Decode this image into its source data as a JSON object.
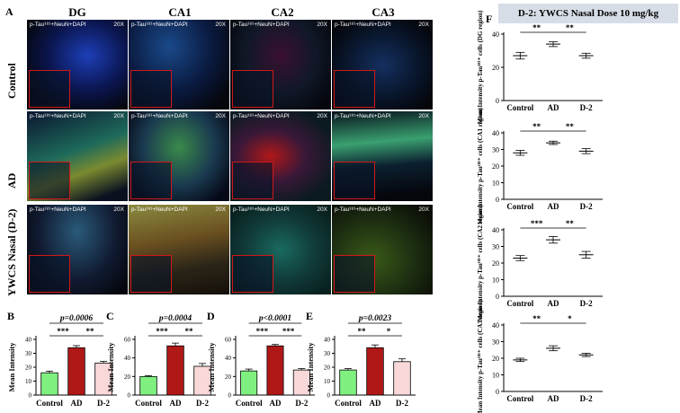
{
  "headers": {
    "figure_letter_A": "A",
    "figure_letter_F": "F",
    "columns": [
      "DG",
      "CA1",
      "CA2",
      "CA3"
    ],
    "rows": [
      "Control",
      "AD",
      "YWCS Nasal (D-2)"
    ],
    "tile_label": "p-Tau¹⁸¹+NeuN+DAPI",
    "zoom": "20X"
  },
  "panel_F_title": "D-2: YWCS Nasal Dose 10 mg/kg",
  "colors": {
    "control": "#7ff07f",
    "ad": "#b01818",
    "d2": "#f8d8d8"
  },
  "chart_data": [
    {
      "type": "bar",
      "panel": "B",
      "categories": [
        "Control",
        "AD",
        "D-2"
      ],
      "values": [
        16,
        34,
        23
      ],
      "errors": [
        1.2,
        1.5,
        1.2
      ],
      "ylabel": "Mean Intensity",
      "ylim": [
        0,
        40
      ],
      "yticks": [
        0,
        10,
        20,
        30,
        40
      ],
      "pvalue": "p=0.0006",
      "sig": [
        {
          "from": 0,
          "to": 1,
          "label": "***"
        },
        {
          "from": 1,
          "to": 2,
          "label": "**"
        }
      ]
    },
    {
      "type": "bar",
      "panel": "C",
      "categories": [
        "Control",
        "AD",
        "D-2"
      ],
      "values": [
        20,
        53,
        31
      ],
      "errors": [
        1,
        3,
        3
      ],
      "ylabel": "Mean Intensity",
      "ylim": [
        0,
        60
      ],
      "yticks": [
        0,
        20,
        40,
        60
      ],
      "pvalue": "p=0.0004",
      "sig": [
        {
          "from": 0,
          "to": 1,
          "label": "***"
        },
        {
          "from": 1,
          "to": 2,
          "label": "**"
        }
      ]
    },
    {
      "type": "bar",
      "panel": "D",
      "categories": [
        "Control",
        "AD",
        "D-2"
      ],
      "values": [
        26,
        53,
        27
      ],
      "errors": [
        2,
        1.5,
        1.5
      ],
      "ylabel": "Mean Intensity",
      "ylim": [
        0,
        60
      ],
      "yticks": [
        0,
        20,
        40,
        60
      ],
      "pvalue": "p<0.0001",
      "sig": [
        {
          "from": 0,
          "to": 1,
          "label": "***"
        },
        {
          "from": 1,
          "to": 2,
          "label": "***"
        }
      ]
    },
    {
      "type": "bar",
      "panel": "E",
      "categories": [
        "Control",
        "AD",
        "D-2"
      ],
      "values": [
        18,
        34,
        24
      ],
      "errors": [
        1,
        2,
        2
      ],
      "ylabel": "Mean Intensity",
      "ylim": [
        0,
        40
      ],
      "yticks": [
        0,
        10,
        20,
        30,
        40
      ],
      "pvalue": "p=0.0023",
      "sig": [
        {
          "from": 0,
          "to": 1,
          "label": "**"
        },
        {
          "from": 1,
          "to": 2,
          "label": "*"
        }
      ]
    },
    {
      "type": "scatter",
      "panel": "F1",
      "categories": [
        "Control",
        "AD",
        "D-2"
      ],
      "values": [
        27,
        34,
        27
      ],
      "errors": [
        2,
        1.5,
        1.5
      ],
      "ylabel": "Mean Intensity p-Tau¹⁸¹⁺ cells (DG region)",
      "ylim": [
        0,
        40
      ],
      "yticks": [
        0,
        20,
        40
      ],
      "sig": [
        {
          "from": 0,
          "to": 1,
          "label": "**"
        },
        {
          "from": 1,
          "to": 2,
          "label": "**"
        }
      ]
    },
    {
      "type": "scatter",
      "panel": "F2",
      "categories": [
        "Control",
        "AD",
        "D-2"
      ],
      "values": [
        28,
        34,
        29
      ],
      "errors": [
        1.5,
        1,
        1.5
      ],
      "ylabel": "Mean Intensity p-Tau¹⁸¹⁺ cells (CA1 region)",
      "ylim": [
        0,
        40
      ],
      "yticks": [
        0,
        10,
        20,
        30,
        40
      ],
      "sig": [
        {
          "from": 0,
          "to": 1,
          "label": "**"
        },
        {
          "from": 1,
          "to": 2,
          "label": "**"
        }
      ]
    },
    {
      "type": "scatter",
      "panel": "F3",
      "categories": [
        "Control",
        "AD",
        "D-2"
      ],
      "values": [
        23,
        34,
        25
      ],
      "errors": [
        1.5,
        2,
        2
      ],
      "ylabel": "Mean Intensity p-Tau¹⁸¹⁺ cells (CA2 region)",
      "ylim": [
        0,
        40
      ],
      "yticks": [
        0,
        10,
        20,
        30,
        40
      ],
      "sig": [
        {
          "from": 0,
          "to": 1,
          "label": "***"
        },
        {
          "from": 1,
          "to": 2,
          "label": "**"
        }
      ]
    },
    {
      "type": "scatter",
      "panel": "F4",
      "categories": [
        "Control",
        "AD",
        "D-2"
      ],
      "values": [
        19,
        26,
        22
      ],
      "errors": [
        1,
        1.5,
        1
      ],
      "ylabel": "Mean Intensity p-Tau¹⁸¹⁺ cells (CA3 region)",
      "ylim": [
        0,
        40
      ],
      "yticks": [
        0,
        10,
        20,
        30,
        40
      ],
      "sig": [
        {
          "from": 0,
          "to": 1,
          "label": "**"
        },
        {
          "from": 1,
          "to": 2,
          "label": "*"
        }
      ]
    }
  ]
}
